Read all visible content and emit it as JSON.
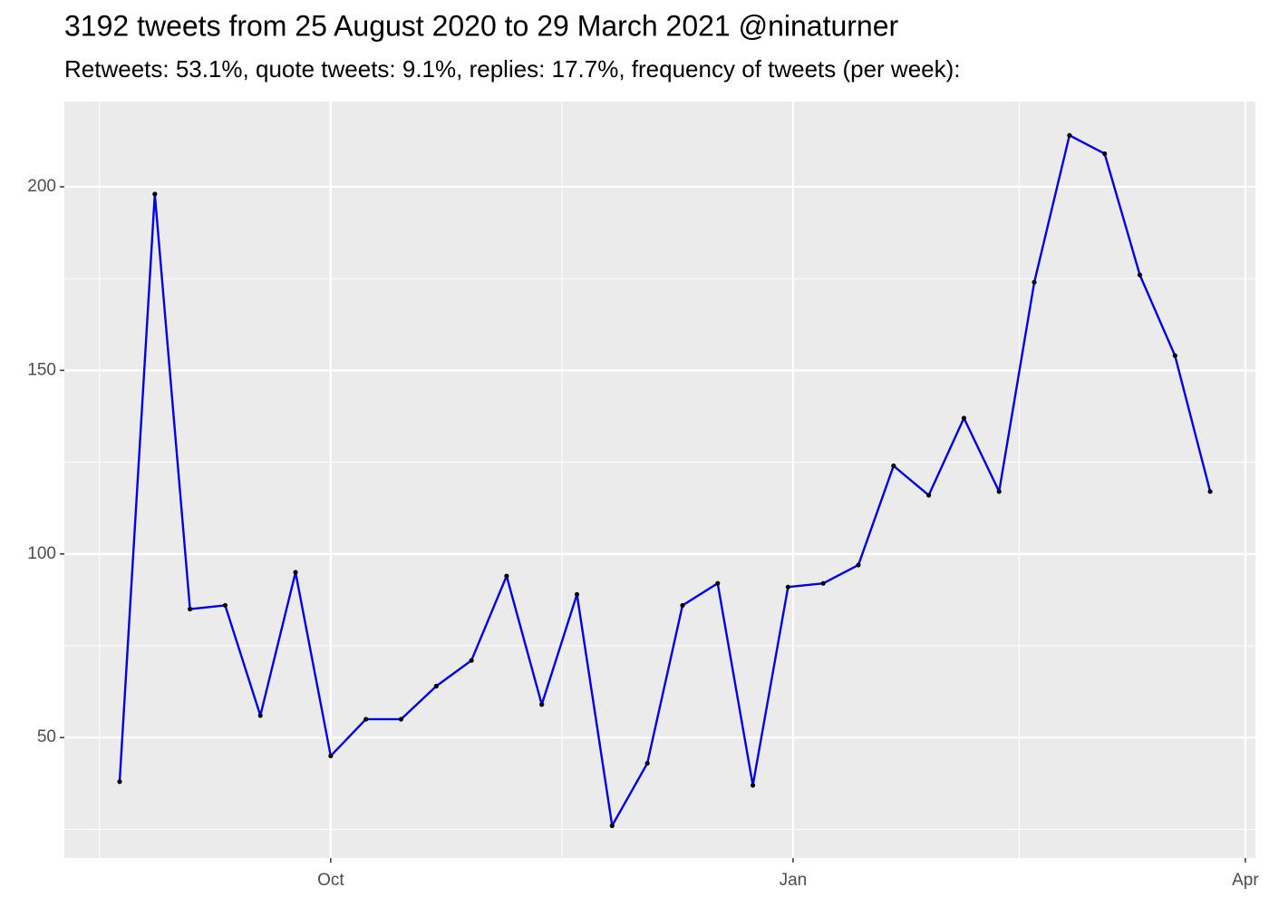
{
  "chart_data": {
    "type": "line",
    "title": "3192 tweets from 25 August 2020 to 29 March 2021 @ninaturner",
    "subtitle": "Retweets: 53.1%, quote tweets: 9.1%, replies: 17.7%, frequency of tweets (per week):",
    "x": [
      "2020-08-20",
      "2020-08-27",
      "2020-09-03",
      "2020-09-10",
      "2020-09-17",
      "2020-09-24",
      "2020-10-01",
      "2020-10-08",
      "2020-10-15",
      "2020-10-22",
      "2020-10-29",
      "2020-11-05",
      "2020-11-12",
      "2020-11-19",
      "2020-11-26",
      "2020-12-03",
      "2020-12-10",
      "2020-12-17",
      "2020-12-24",
      "2020-12-31",
      "2021-01-07",
      "2021-01-14",
      "2021-01-21",
      "2021-01-28",
      "2021-02-04",
      "2021-02-11",
      "2021-02-18",
      "2021-02-25",
      "2021-03-04",
      "2021-03-11",
      "2021-03-18",
      "2021-03-25"
    ],
    "series": [
      {
        "color": "#0000ee",
        "values": [
          38,
          198,
          85,
          86,
          56,
          95,
          45,
          55,
          55,
          64,
          71,
          94,
          59,
          89,
          26,
          43,
          86,
          92,
          37,
          91,
          92,
          97,
          124,
          116,
          137,
          117,
          174,
          214,
          209,
          176,
          154,
          117
        ]
      }
    ],
    "xlim": [
      "2020-08-09",
      "2021-04-03"
    ],
    "xticks": [
      {
        "value": "2020-10-01",
        "label": "Oct"
      },
      {
        "value": "2021-01-01",
        "label": "Jan"
      },
      {
        "value": "2021-04-01",
        "label": "Apr"
      }
    ],
    "ylim": [
      17.2,
      223.2
    ],
    "yticks": [
      50,
      100,
      150,
      200
    ],
    "grid": true,
    "point_color": "#000000"
  }
}
